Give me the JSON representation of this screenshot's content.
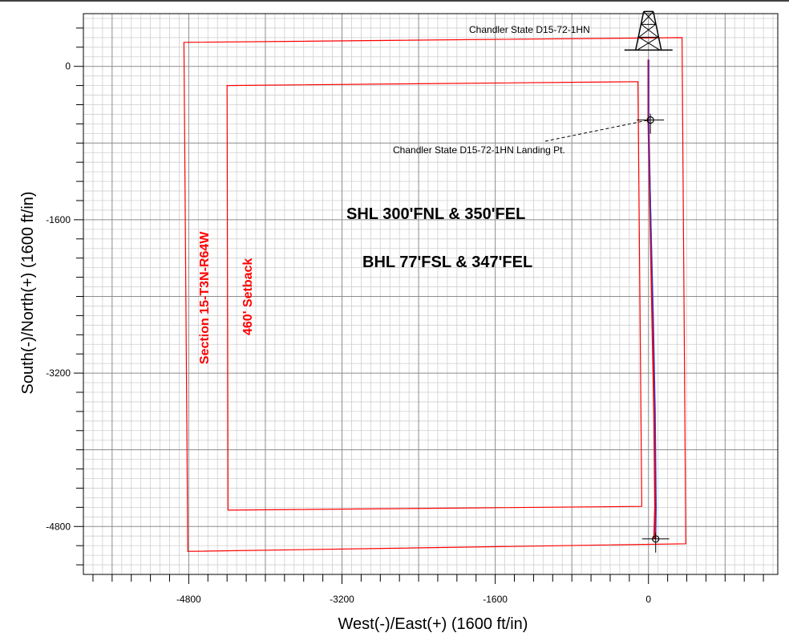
{
  "chart_data": {
    "type": "scatter",
    "title": "",
    "xlabel": "West(-)/East(+) (1600 ft/in)",
    "ylabel": "South(-)/North(+) (1600 ft/in)",
    "xlim": [
      -5900,
      1350
    ],
    "ylim": [
      -5300,
      550
    ],
    "x_ticks": [
      -4800,
      -3200,
      -1600,
      0
    ],
    "y_ticks": [
      0,
      -1600,
      -3200,
      -4800
    ],
    "grid": true,
    "series": [
      {
        "name": "",
        "kind": "polygon",
        "color": "#ff0000",
        "points": [
          [
            -4850,
            250
          ],
          [
            350,
            300
          ],
          [
            390,
            -4980
          ],
          [
            -4810,
            -5060
          ]
        ]
      },
      {
        "name": "",
        "kind": "polygon",
        "color": "#ff0000",
        "points": [
          [
            -4400,
            -200
          ],
          [
            -110,
            -160
          ],
          [
            -70,
            -4590
          ],
          [
            -4390,
            -4630
          ]
        ]
      },
      {
        "name": "",
        "kind": "line",
        "color": "#ff0000",
        "points": [
          [
            0,
            70
          ],
          [
            0,
            -560
          ],
          [
            20,
            -1600
          ],
          [
            40,
            -2600
          ],
          [
            60,
            -3600
          ],
          [
            70,
            -4600
          ],
          [
            60,
            -4930
          ]
        ]
      },
      {
        "name": "",
        "kind": "line",
        "color": "#3333cc",
        "points": [
          [
            0,
            70
          ],
          [
            0,
            -560
          ],
          [
            25,
            -1600
          ],
          [
            50,
            -2600
          ],
          [
            70,
            -3600
          ],
          [
            80,
            -4600
          ],
          [
            75,
            -4930
          ]
        ]
      }
    ],
    "markers": [
      {
        "name": "surface-location",
        "x": 0,
        "y": 70
      },
      {
        "name": "landing-point",
        "x": 20,
        "y": -560
      },
      {
        "name": "bottom-hole",
        "x": 75,
        "y": -4930
      }
    ],
    "annotations": {
      "well_name": "Chandler State D15-72-1HN",
      "landing_point": "Chandler State D15-72-1HN Landing Pt.",
      "shl": "SHL 300'FNL & 350'FEL",
      "bhl": "BHL 77'FSL & 347'FEL",
      "section": "Section 15-T3N-R64W",
      "setback": "460' Setback"
    },
    "tick_labels": {
      "x": [
        "-4800",
        "-3200",
        "-1600",
        "0"
      ],
      "y": [
        "0",
        "-1600",
        "-3200",
        "-4800"
      ]
    }
  }
}
